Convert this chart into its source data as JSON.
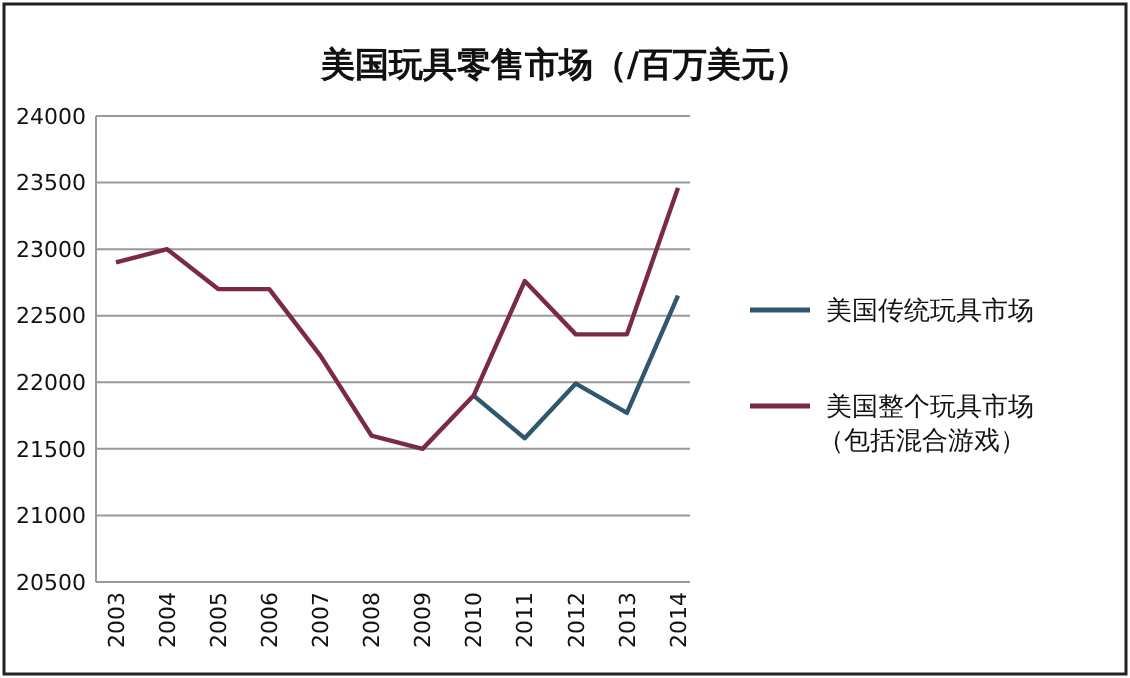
{
  "chart_data": {
    "type": "line",
    "title": "美国玩具零售市场（/百万美元）",
    "categories": [
      "2003",
      "2004",
      "2005",
      "2006",
      "2007",
      "2008",
      "2009",
      "2010",
      "2011",
      "2012",
      "2013",
      "2014"
    ],
    "series": [
      {
        "name": "美国传统玩具市场",
        "color": "#2f5870",
        "values": [
          null,
          null,
          null,
          null,
          null,
          null,
          null,
          21900,
          21580,
          21990,
          21770,
          22650
        ]
      },
      {
        "name": "美国整个玩具市场（包括混合游戏）",
        "color": "#7a2a45",
        "values": [
          22900,
          23000,
          22700,
          22700,
          22200,
          21600,
          21500,
          21900,
          22760,
          22360,
          22360,
          23460
        ]
      }
    ],
    "ylim": [
      20500,
      24000
    ],
    "yticks": [
      20500,
      21000,
      21500,
      22000,
      22500,
      23000,
      23500,
      24000
    ],
    "grid": "y",
    "legend": "right",
    "marker": "none"
  }
}
